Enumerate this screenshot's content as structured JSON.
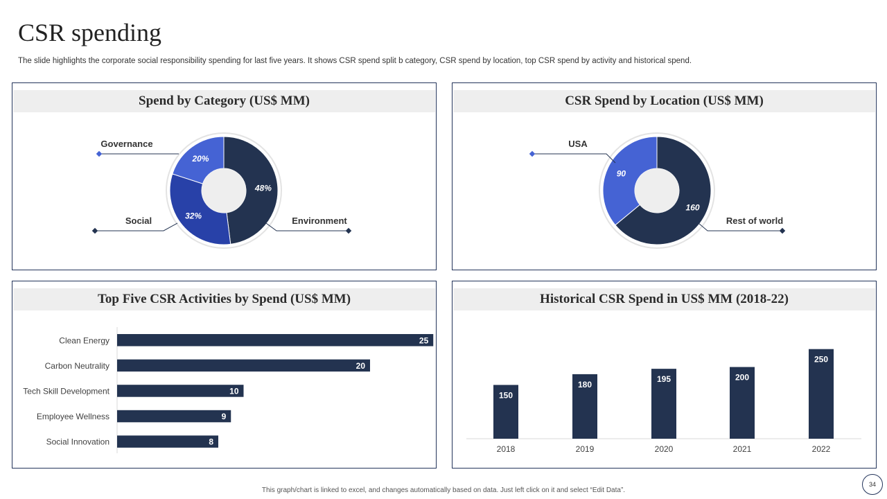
{
  "slide": {
    "title": "CSR spending",
    "subtitle": "The slide highlights the corporate social responsibility spending for last five years. It shows CSR spend split b category, CSR spend by location, top CSR spend by activity  and historical spend.",
    "footer": "This graph/chart is linked to excel, and changes automatically based on data. Just left click on it and select “Edit Data”.",
    "page_number": "34"
  },
  "colors": {
    "navy": "#233350",
    "royal_blue": "#2841a8",
    "light_blue": "#4563d4",
    "donut_hole": "#eeeeee",
    "panel_border": "#22335a"
  },
  "chart_data": [
    {
      "type": "pie",
      "variant": "donut",
      "title": "Spend by Category (US$ MM)",
      "categories": [
        "Environment",
        "Social",
        "Governance"
      ],
      "values": [
        48,
        32,
        20
      ],
      "value_labels": [
        "48%",
        "32%",
        "20%"
      ],
      "colors": [
        "#233350",
        "#2841a8",
        "#4563d4"
      ]
    },
    {
      "type": "pie",
      "variant": "donut",
      "title": "CSR Spend by Location (US$ MM)",
      "categories": [
        "Rest of world",
        "USA"
      ],
      "values": [
        160,
        90
      ],
      "value_labels": [
        "160",
        "90"
      ],
      "colors": [
        "#233350",
        "#4563d4"
      ]
    },
    {
      "type": "bar",
      "orientation": "horizontal",
      "title": "Top Five CSR Activities by Spend (US$ MM)",
      "categories": [
        "Clean Energy",
        "Carbon Neutrality",
        "Tech Skill Development",
        "Employee Wellness",
        "Social Innovation"
      ],
      "values": [
        25,
        20,
        10,
        9,
        8
      ],
      "xlim": [
        0,
        40
      ],
      "color": "#233350"
    },
    {
      "type": "bar",
      "orientation": "vertical",
      "title": "Historical CSR Spend in US$ MM (2018-22)",
      "categories": [
        "2018",
        "2019",
        "2020",
        "2021",
        "2022"
      ],
      "values": [
        150,
        180,
        195,
        200,
        250
      ],
      "ylim": [
        0,
        290
      ],
      "color": "#233350"
    }
  ]
}
